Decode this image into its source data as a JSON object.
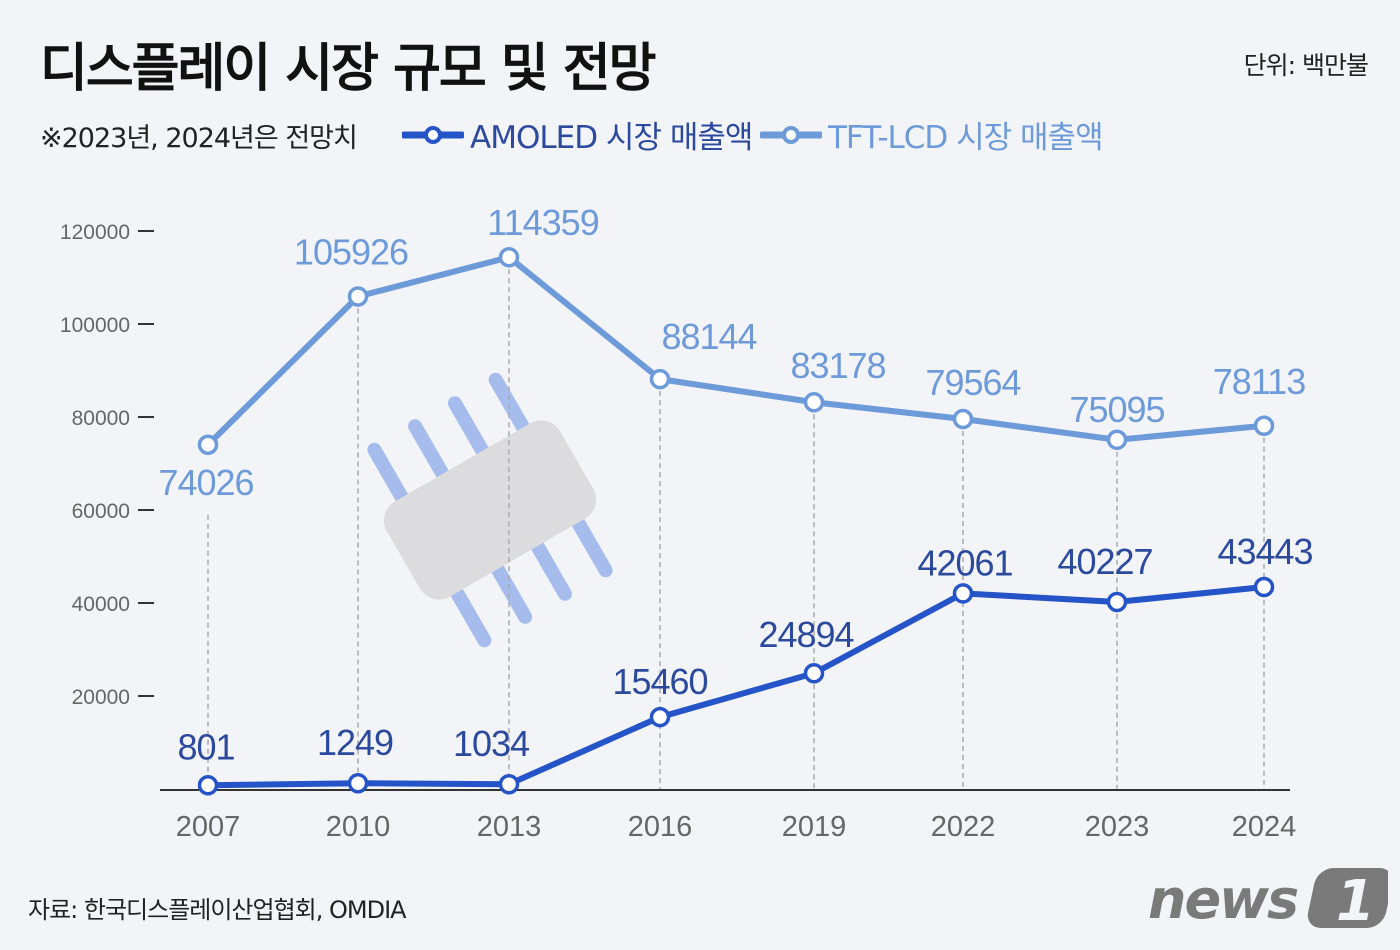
{
  "header": {
    "title": "디스플레이 시장 규모 및 전망",
    "unit": "단위: 백만불",
    "note": "※2023년, 2024년은 전망치"
  },
  "footer": {
    "source": "자료: 한국디스플레이산업협회, OMDIA",
    "logo": "news1"
  },
  "colors": {
    "amoled": "#2553c8",
    "tft": "#6d9ad8",
    "amoled_label": "#2b4a9e",
    "background": "#f3f4f8"
  },
  "chart_data": {
    "type": "line",
    "title": "디스플레이 시장 규모 및 전망",
    "categories": [
      "2007",
      "2010",
      "2013",
      "2016",
      "2019",
      "2022",
      "2023",
      "2024"
    ],
    "series": [
      {
        "name": "AMOLED 시장 매출액",
        "values": [
          801,
          1249,
          1034,
          15460,
          24894,
          42061,
          40227,
          43443
        ]
      },
      {
        "name": "TFT-LCD 시장 매출액",
        "values": [
          74026,
          105926,
          114359,
          88144,
          83178,
          79564,
          75095,
          78113
        ]
      }
    ],
    "yticks": [
      "20000",
      "40000",
      "60000",
      "80000",
      "100000",
      "120000"
    ],
    "ylim": [
      0,
      120000
    ],
    "legend_position": "top-left",
    "grid": false
  }
}
